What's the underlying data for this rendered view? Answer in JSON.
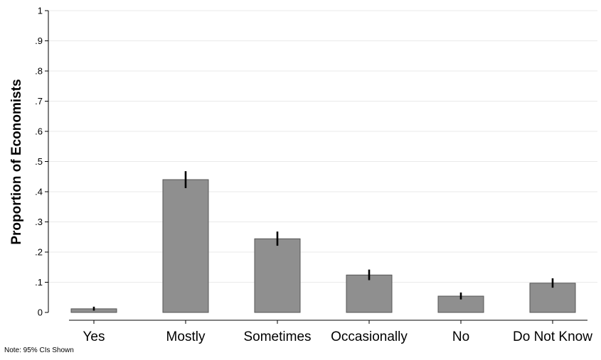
{
  "chart_data": {
    "type": "bar",
    "categories": [
      "Yes",
      "Mostly",
      "Sometimes",
      "Occasionally",
      "No",
      "Do Not Know"
    ],
    "values": [
      0.012,
      0.44,
      0.244,
      0.124,
      0.054,
      0.097
    ],
    "ci_low": [
      0.006,
      0.412,
      0.221,
      0.107,
      0.043,
      0.082
    ],
    "ci_high": [
      0.019,
      0.468,
      0.268,
      0.142,
      0.066,
      0.113
    ],
    "ylabel": "Proportion of Economists",
    "xlabel": "",
    "title": "",
    "ylim": [
      0,
      1
    ],
    "yticks": [
      0,
      0.1,
      0.2,
      0.3,
      0.4,
      0.5,
      0.6,
      0.7,
      0.8,
      0.9,
      1
    ],
    "ytick_labels": [
      "0",
      ".1",
      ".2",
      ".3",
      ".4",
      ".5",
      ".6",
      ".7",
      ".8",
      ".9",
      "1"
    ],
    "grid": true,
    "bar_color": "#8f8f8f",
    "bar_edge_color": "#555555",
    "grid_color": "#eaeaea"
  },
  "note": "Note:  95% CIs Shown"
}
